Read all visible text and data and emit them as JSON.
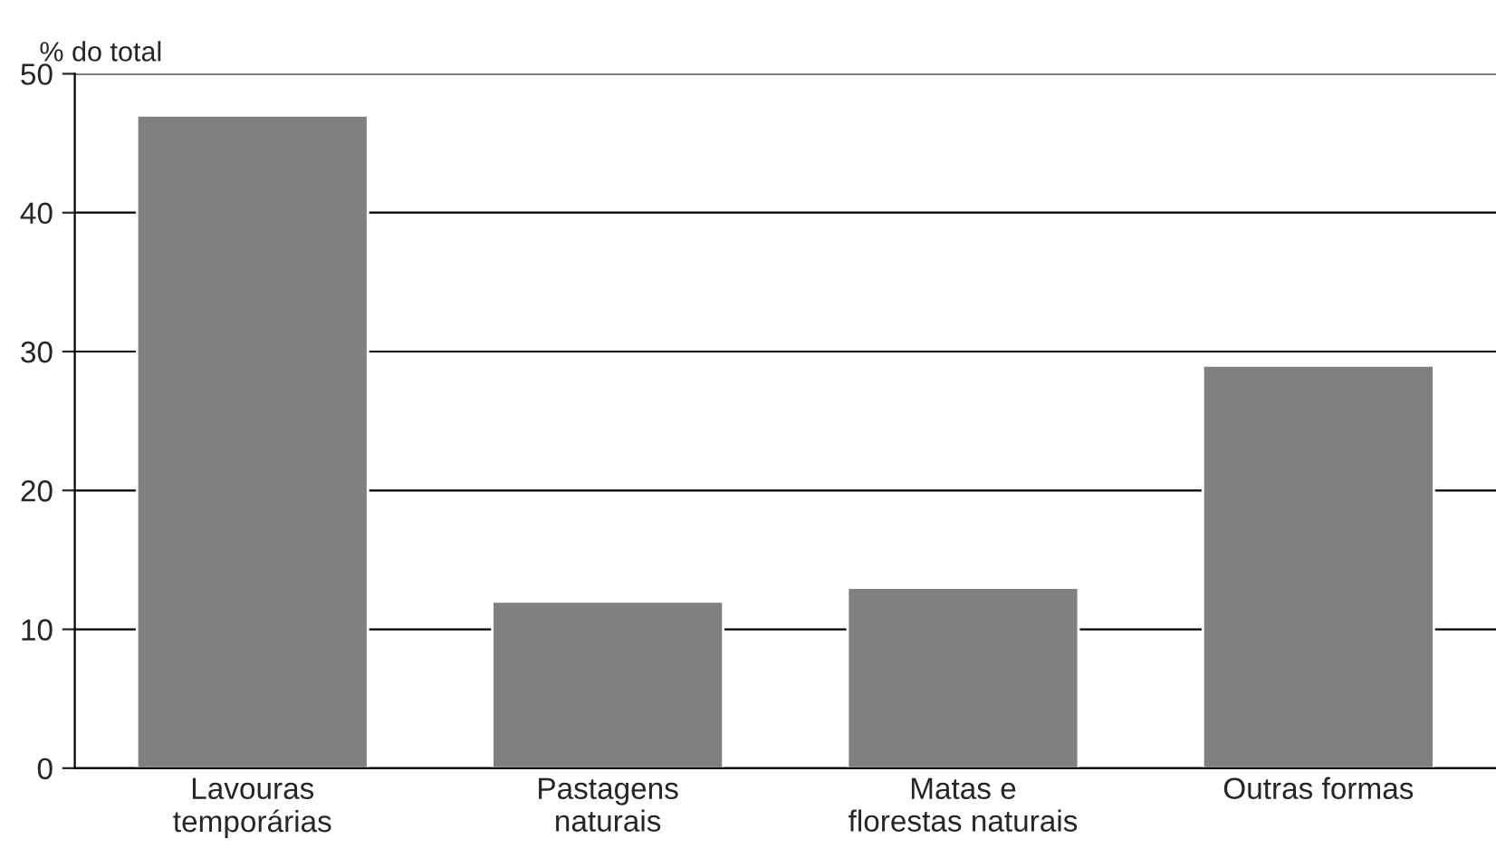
{
  "chart_data": {
    "type": "bar",
    "ylabel": "% do total",
    "categories": [
      "Lavouras\ntemporárias",
      "Pastagens\nnaturais",
      "Matas e\nflorestas naturais",
      "Outras formas"
    ],
    "values": [
      47,
      12,
      13,
      29
    ],
    "color": "#808080",
    "ylim": [
      0,
      50
    ],
    "yticks": [
      0,
      10,
      20,
      30,
      40,
      50
    ],
    "grid": "y"
  }
}
